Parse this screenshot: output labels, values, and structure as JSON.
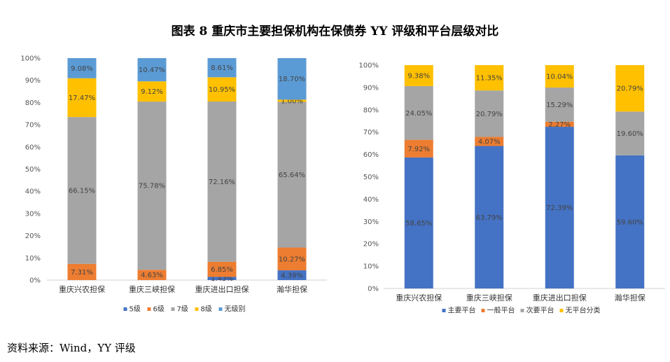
{
  "title": "图表 8    重庆市主要担保机构在保债券 YY 评级和平台层级对比",
  "source": "资料来源：Wind，YY 评级",
  "chart_data": [
    {
      "type": "bar",
      "stacked": true,
      "categories": [
        "重庆兴农担保",
        "重庆三峡担保",
        "重庆进出口担保",
        "瀚华担保"
      ],
      "y_ticks": [
        "0%",
        "10%",
        "20%",
        "30%",
        "40%",
        "50%",
        "60%",
        "70%",
        "80%",
        "90%",
        "100%"
      ],
      "ylim": [
        0,
        100
      ],
      "legend_position": "bottom",
      "series": [
        {
          "name": "5级",
          "color": "#4472C4",
          "values": [
            0,
            0,
            1.43,
            4.39
          ],
          "labels": [
            "",
            "",
            "1.43%",
            "4.39%"
          ]
        },
        {
          "name": "6级",
          "color": "#ED7D31",
          "values": [
            7.31,
            4.63,
            6.85,
            10.27
          ],
          "labels": [
            "7.31%",
            "4.63%",
            "6.85%",
            "10.27%"
          ]
        },
        {
          "name": "7级",
          "color": "#A5A5A5",
          "values": [
            66.15,
            75.78,
            72.16,
            65.64
          ],
          "labels": [
            "66.15%",
            "75.78%",
            "72.16%",
            "65.64%"
          ]
        },
        {
          "name": "8级",
          "color": "#FFC000",
          "values": [
            17.47,
            9.12,
            10.95,
            1.0
          ],
          "labels": [
            "17.47%",
            "9.12%",
            "10.95%",
            "1.00%"
          ]
        },
        {
          "name": "无级别",
          "color": "#5B9BD5",
          "values": [
            9.08,
            10.47,
            8.61,
            18.7
          ],
          "labels": [
            "9.08%",
            "10.47%",
            "8.61%",
            "18.70%"
          ]
        }
      ]
    },
    {
      "type": "bar",
      "stacked": true,
      "categories": [
        "重庆兴农担保",
        "重庆三峡担保",
        "重庆进出口担保",
        "瀚华担保"
      ],
      "y_ticks": [
        "0%",
        "10%",
        "20%",
        "30%",
        "40%",
        "50%",
        "60%",
        "70%",
        "80%",
        "90%",
        "100%"
      ],
      "ylim": [
        0,
        100
      ],
      "legend_position": "bottom",
      "series": [
        {
          "name": "主要平台",
          "color": "#4472C4",
          "values": [
            58.65,
            63.79,
            72.39,
            59.6
          ],
          "labels": [
            "58.65%",
            "63.79%",
            "72.39%",
            "59.60%"
          ]
        },
        {
          "name": "一般平台",
          "color": "#ED7D31",
          "values": [
            7.92,
            4.07,
            2.27,
            0
          ],
          "labels": [
            "7.92%",
            "4.07%",
            "2.27%",
            ""
          ]
        },
        {
          "name": "次要平台",
          "color": "#A5A5A5",
          "values": [
            24.05,
            20.79,
            15.29,
            19.6
          ],
          "labels": [
            "24.05%",
            "20.79%",
            "15.29%",
            "19.60%"
          ]
        },
        {
          "name": "无平台分类",
          "color": "#FFC000",
          "values": [
            9.38,
            11.35,
            10.04,
            20.79
          ],
          "labels": [
            "9.38%",
            "11.35%",
            "10.04%",
            "20.79%"
          ]
        }
      ]
    }
  ]
}
